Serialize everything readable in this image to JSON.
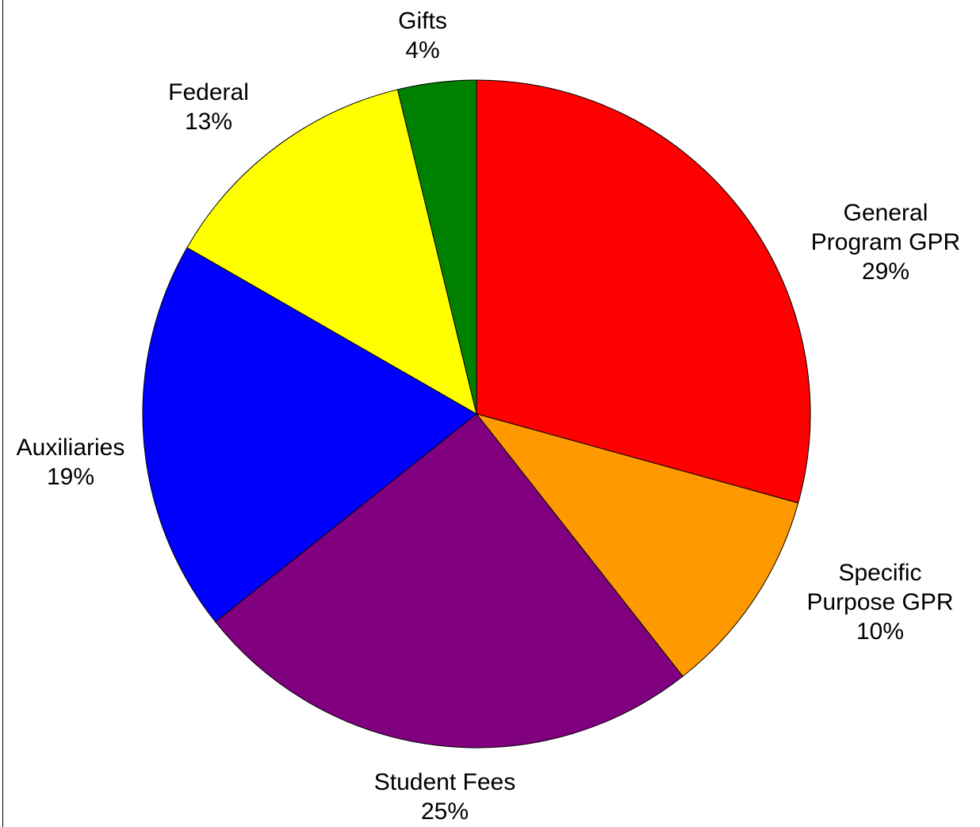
{
  "chart_data": {
    "type": "pie",
    "title": "",
    "start_angle_deg": 0,
    "direction": "clockwise",
    "slices": [
      {
        "name": "General Program GPR",
        "lines": [
          "General",
          "Program GPR"
        ],
        "pct_label": "29%",
        "value": 29.3,
        "color": "#ff0000"
      },
      {
        "name": "Specific Purpose GPR",
        "lines": [
          "Specific",
          "Purpose GPR"
        ],
        "pct_label": "10%",
        "value": 10.1,
        "color": "#ff9900"
      },
      {
        "name": "Student Fees",
        "lines": [
          "Student Fees"
        ],
        "pct_label": "25%",
        "value": 24.9,
        "color": "#800080"
      },
      {
        "name": "Auxiliaries",
        "lines": [
          "Auxiliaries"
        ],
        "pct_label": "19%",
        "value": 19.0,
        "color": "#0000ff"
      },
      {
        "name": "Federal",
        "lines": [
          "Federal"
        ],
        "pct_label": "13%",
        "value": 12.9,
        "color": "#ffff00"
      },
      {
        "name": "Gifts",
        "lines": [
          "Gifts"
        ],
        "pct_label": "4%",
        "value": 3.8,
        "color": "#008000"
      }
    ]
  }
}
